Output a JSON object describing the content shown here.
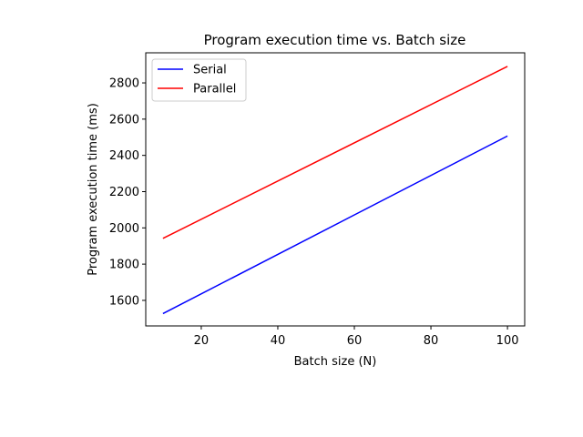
{
  "chart_data": {
    "type": "line",
    "title": "Program execution time vs. Batch size",
    "xlabel": "Batch size (N)",
    "ylabel": "Program execution time (ms)",
    "xlim": [
      5.5,
      104.5
    ],
    "ylim": [
      1459,
      2966
    ],
    "xticks": [
      20,
      40,
      60,
      80,
      100
    ],
    "yticks": [
      1600,
      1800,
      2000,
      2200,
      2400,
      2600,
      2800
    ],
    "grid": false,
    "legend_position": "top-left",
    "series": [
      {
        "name": "Serial",
        "color": "#0000ff",
        "x": [
          10,
          100
        ],
        "y": [
          1527,
          2507
        ]
      },
      {
        "name": "Parallel",
        "color": "#ff0000",
        "x": [
          10,
          100
        ],
        "y": [
          1942,
          2891
        ]
      }
    ]
  }
}
